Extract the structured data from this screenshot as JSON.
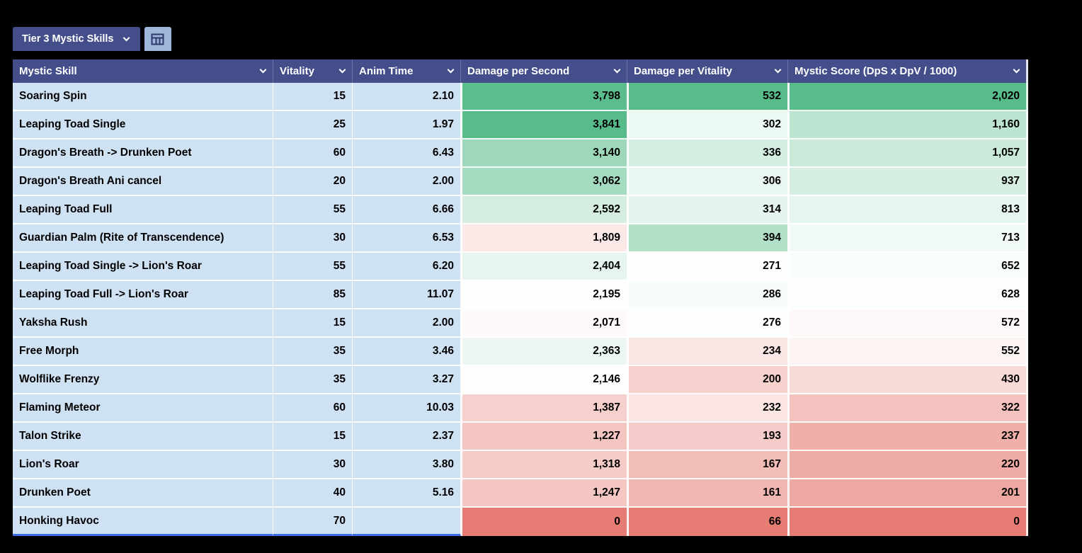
{
  "tab_bar": {
    "active_tab": "Tier 3 Mystic Skills"
  },
  "icons": {
    "tab_chevron": "chevron-down",
    "grid_button": "table-grid",
    "header_dropdowns": "chevron-down"
  },
  "table": {
    "columns": [
      {
        "label": "Mystic Skill",
        "type": "text",
        "align": "left"
      },
      {
        "label": "Vitality",
        "type": "plain",
        "align": "right"
      },
      {
        "label": "Anim Time",
        "type": "plain",
        "align": "right"
      },
      {
        "label": "Damage per Second",
        "type": "scale",
        "align": "right"
      },
      {
        "label": "Damage per Vitality",
        "type": "scale",
        "align": "right"
      },
      {
        "label": "Mystic Score (DpS x DpV / 1000)",
        "type": "scale",
        "align": "right"
      }
    ],
    "rows": [
      {
        "cells": [
          "Soaring Spin",
          "15",
          "2.10",
          "3,798",
          "532",
          "2,020"
        ]
      },
      {
        "cells": [
          "Leaping Toad Single",
          "25",
          "1.97",
          "3,841",
          "302",
          "1,160"
        ]
      },
      {
        "cells": [
          "Dragon's Breath -> Drunken Poet",
          "60",
          "6.43",
          "3,140",
          "336",
          "1,057"
        ]
      },
      {
        "cells": [
          "Dragon's Breath Ani cancel",
          "20",
          "2.00",
          "3,062",
          "306",
          "937"
        ]
      },
      {
        "cells": [
          "Leaping Toad Full",
          "55",
          "6.66",
          "2,592",
          "314",
          "813"
        ]
      },
      {
        "cells": [
          "Guardian Palm (Rite of Transcendence)",
          "30",
          "6.53",
          "1,809",
          "394",
          "713"
        ]
      },
      {
        "cells": [
          "Leaping Toad Single -> Lion's Roar",
          "55",
          "6.20",
          "2,404",
          "271",
          "652"
        ]
      },
      {
        "cells": [
          "Leaping Toad Full -> Lion's Roar",
          "85",
          "11.07",
          "2,195",
          "286",
          "628"
        ]
      },
      {
        "cells": [
          "Yaksha Rush",
          "15",
          "2.00",
          "2,071",
          "276",
          "572"
        ]
      },
      {
        "cells": [
          "Free Morph",
          "35",
          "3.46",
          "2,363",
          "234",
          "552"
        ]
      },
      {
        "cells": [
          "Wolflike Frenzy",
          "35",
          "3.27",
          "2,146",
          "200",
          "430"
        ]
      },
      {
        "cells": [
          "Flaming Meteor",
          "60",
          "10.03",
          "1,387",
          "232",
          "322"
        ]
      },
      {
        "cells": [
          "Talon Strike",
          "15",
          "2.37",
          "1,227",
          "193",
          "237"
        ]
      },
      {
        "cells": [
          "Lion's Roar",
          "30",
          "3.80",
          "1,318",
          "167",
          "220"
        ]
      },
      {
        "cells": [
          "Drunken Poet",
          "40",
          "5.16",
          "1,247",
          "161",
          "201"
        ]
      },
      {
        "cells": [
          "Honking Havoc",
          "70",
          "",
          "0",
          "66",
          "0"
        ]
      }
    ]
  },
  "colors": {
    "background": "#000000",
    "header_bg": "#434e8a",
    "tab_bg": "#434e8a",
    "grid_button_bg": "#9fb7da",
    "plain_cell_bg": "#cfe2f3",
    "scale_max_green": "#57bb8a",
    "scale_min_red": "#e67c73",
    "scale_mid_white": "#ffffff",
    "range_border_blue": "#3d6de0"
  }
}
